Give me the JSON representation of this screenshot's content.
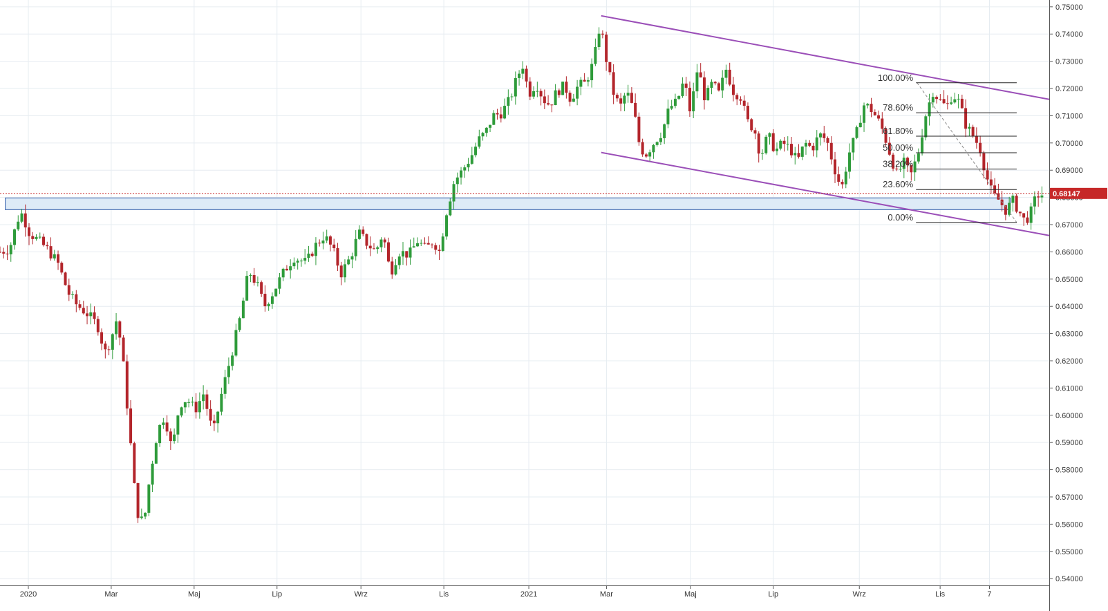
{
  "chart_data": {
    "type": "candlestick",
    "title": "",
    "xlabel": "",
    "ylabel": "",
    "ylim": [
      0.5375,
      0.7525
    ],
    "grid": true,
    "y_ticks": [
      "0.54000",
      "0.55000",
      "0.56000",
      "0.57000",
      "0.58000",
      "0.59000",
      "0.60000",
      "0.61000",
      "0.62000",
      "0.63000",
      "0.64000",
      "0.65000",
      "0.66000",
      "0.67000",
      "0.68000",
      "0.69000",
      "0.70000",
      "0.71000",
      "0.72000",
      "0.73000",
      "0.74000",
      "0.75000"
    ],
    "x_ticks": [
      "2020",
      "Mar",
      "Maj",
      "Lip",
      "Wrz",
      "Lis",
      "2021",
      "Mar",
      "Maj",
      "Lip",
      "Wrz",
      "Lis",
      "7"
    ],
    "current_price": {
      "value": 0.68147,
      "label": "0.68147",
      "color": "#c62828"
    },
    "up_color": "#2e9b3a",
    "down_color": "#b3252b",
    "price_path": [
      [
        0.0,
        0.66
      ],
      [
        0.9,
        0.661
      ],
      [
        1.7,
        0.672
      ],
      [
        2.1,
        0.674
      ],
      [
        2.8,
        0.667
      ],
      [
        3.7,
        0.664
      ],
      [
        4.5,
        0.661
      ],
      [
        5.5,
        0.656
      ],
      [
        6.5,
        0.645
      ],
      [
        7.2,
        0.641
      ],
      [
        8.4,
        0.637
      ],
      [
        9.3,
        0.633
      ],
      [
        10.0,
        0.623
      ],
      [
        10.5,
        0.627
      ],
      [
        11.1,
        0.635
      ],
      [
        11.6,
        0.625
      ],
      [
        12.3,
        0.596
      ],
      [
        13.0,
        0.565
      ],
      [
        13.7,
        0.56
      ],
      [
        14.3,
        0.578
      ],
      [
        15.0,
        0.594
      ],
      [
        15.7,
        0.6
      ],
      [
        16.4,
        0.587
      ],
      [
        17.1,
        0.604
      ],
      [
        17.8,
        0.606
      ],
      [
        18.6,
        0.602
      ],
      [
        19.4,
        0.608
      ],
      [
        20.3,
        0.593
      ],
      [
        21.0,
        0.606
      ],
      [
        22.1,
        0.623
      ],
      [
        22.9,
        0.636
      ],
      [
        23.7,
        0.653
      ],
      [
        24.5,
        0.648
      ],
      [
        25.2,
        0.64
      ],
      [
        26.0,
        0.645
      ],
      [
        27.1,
        0.653
      ],
      [
        28.0,
        0.658
      ],
      [
        29.2,
        0.656
      ],
      [
        30.0,
        0.662
      ],
      [
        30.9,
        0.666
      ],
      [
        31.7,
        0.661
      ],
      [
        32.5,
        0.652
      ],
      [
        33.4,
        0.658
      ],
      [
        34.2,
        0.667
      ],
      [
        35.0,
        0.663
      ],
      [
        35.8,
        0.66
      ],
      [
        36.5,
        0.667
      ],
      [
        37.2,
        0.652
      ],
      [
        38.0,
        0.66
      ],
      [
        39.0,
        0.659
      ],
      [
        39.8,
        0.664
      ],
      [
        40.6,
        0.661
      ],
      [
        41.3,
        0.664
      ],
      [
        41.9,
        0.66
      ],
      [
        42.5,
        0.674
      ],
      [
        43.3,
        0.686
      ],
      [
        44.1,
        0.69
      ],
      [
        44.9,
        0.695
      ],
      [
        45.6,
        0.701
      ],
      [
        46.3,
        0.704
      ],
      [
        47.0,
        0.71
      ],
      [
        47.8,
        0.711
      ],
      [
        48.6,
        0.716
      ],
      [
        49.2,
        0.723
      ],
      [
        49.8,
        0.729
      ],
      [
        50.4,
        0.718
      ],
      [
        51.1,
        0.722
      ],
      [
        51.8,
        0.716
      ],
      [
        52.4,
        0.714
      ],
      [
        53.1,
        0.719
      ],
      [
        53.8,
        0.721
      ],
      [
        54.4,
        0.716
      ],
      [
        55.1,
        0.721
      ],
      [
        55.8,
        0.722
      ],
      [
        56.6,
        0.73
      ],
      [
        57.2,
        0.744
      ],
      [
        57.9,
        0.728
      ],
      [
        58.5,
        0.718
      ],
      [
        59.1,
        0.713
      ],
      [
        59.7,
        0.719
      ],
      [
        60.4,
        0.712
      ],
      [
        61.0,
        0.698
      ],
      [
        61.6,
        0.696
      ],
      [
        62.3,
        0.7
      ],
      [
        63.1,
        0.704
      ],
      [
        63.8,
        0.713
      ],
      [
        64.5,
        0.715
      ],
      [
        65.2,
        0.723
      ],
      [
        65.8,
        0.711
      ],
      [
        66.5,
        0.728
      ],
      [
        67.2,
        0.716
      ],
      [
        67.9,
        0.722
      ],
      [
        68.5,
        0.718
      ],
      [
        69.2,
        0.727
      ],
      [
        69.9,
        0.719
      ],
      [
        70.6,
        0.717
      ],
      [
        71.2,
        0.708
      ],
      [
        71.9,
        0.705
      ],
      [
        72.5,
        0.695
      ],
      [
        73.2,
        0.703
      ],
      [
        73.9,
        0.697
      ],
      [
        74.6,
        0.7
      ],
      [
        75.3,
        0.698
      ],
      [
        76.0,
        0.693
      ],
      [
        76.7,
        0.7
      ],
      [
        77.4,
        0.698
      ],
      [
        78.1,
        0.703
      ],
      [
        78.8,
        0.701
      ],
      [
        79.5,
        0.691
      ],
      [
        80.2,
        0.683
      ],
      [
        80.9,
        0.696
      ],
      [
        81.6,
        0.703
      ],
      [
        82.3,
        0.714
      ],
      [
        82.9,
        0.713
      ],
      [
        83.6,
        0.709
      ],
      [
        84.2,
        0.704
      ],
      [
        84.9,
        0.695
      ],
      [
        85.5,
        0.688
      ],
      [
        86.1,
        0.693
      ],
      [
        86.8,
        0.688
      ],
      [
        87.5,
        0.696
      ],
      [
        88.2,
        0.71
      ],
      [
        88.9,
        0.719
      ],
      [
        89.5,
        0.716
      ],
      [
        90.2,
        0.713
      ],
      [
        90.8,
        0.718
      ],
      [
        91.4,
        0.715
      ],
      [
        92.1,
        0.706
      ],
      [
        92.7,
        0.703
      ],
      [
        93.4,
        0.698
      ],
      [
        94.0,
        0.688
      ],
      [
        94.6,
        0.681
      ],
      [
        95.2,
        0.679
      ],
      [
        95.9,
        0.675
      ],
      [
        96.5,
        0.679
      ],
      [
        97.1,
        0.675
      ],
      [
        97.7,
        0.671
      ],
      [
        98.3,
        0.675
      ],
      [
        98.8,
        0.681
      ],
      [
        99.4,
        0.681
      ]
    ],
    "channel_lines": {
      "color": "#9b4fb8",
      "upper": {
        "from": [
          57.3,
          0.7467
        ],
        "to": [
          100.0,
          0.716
        ]
      },
      "lower": {
        "from": [
          57.3,
          0.6965
        ],
        "to": [
          100.0,
          0.666
        ]
      }
    },
    "support_zone": {
      "from_x": 0.5,
      "to_x": 96.3,
      "low": 0.6755,
      "high": 0.6798,
      "fill": "#deebf7",
      "stroke": "#2e5aa8"
    },
    "fibonacci": {
      "levels": [
        {
          "label": "100.00%",
          "value": 0.7221
        },
        {
          "label": "78.60%",
          "value": 0.7111
        },
        {
          "label": "61.80%",
          "value": 0.7025
        },
        {
          "label": "50.00%",
          "value": 0.6964
        },
        {
          "label": "38.20%",
          "value": 0.6904
        },
        {
          "label": "23.60%",
          "value": 0.6829
        },
        {
          "label": "0.00%",
          "value": 0.6708
        }
      ],
      "from_x": 87.3,
      "to_x": 96.9,
      "trend_from": [
        87.4,
        0.7221
      ],
      "trend_to": [
        96.9,
        0.6708
      ]
    }
  },
  "x_tick_pos": [
    2.7,
    10.6,
    18.5,
    26.4,
    34.4,
    42.3,
    50.4,
    57.8,
    65.8,
    73.7,
    81.9,
    89.6,
    94.3
  ]
}
